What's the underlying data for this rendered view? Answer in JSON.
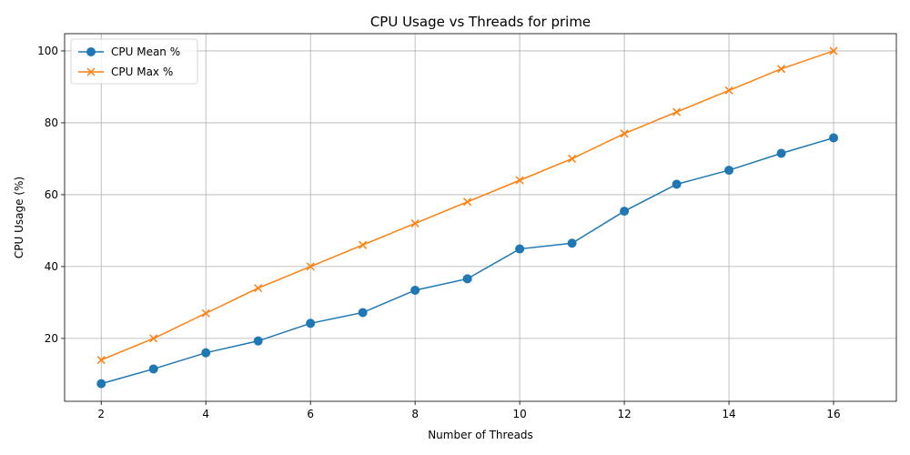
{
  "chart_data": {
    "type": "line",
    "title": "CPU Usage vs Threads for prime",
    "xlabel": "Number of Threads",
    "ylabel": "CPU Usage (%)",
    "x": [
      2,
      3,
      4,
      5,
      6,
      7,
      8,
      9,
      10,
      11,
      12,
      13,
      14,
      15,
      16
    ],
    "xlim": [
      1.3,
      17.2
    ],
    "ylim": [
      2.5,
      104.8
    ],
    "xticks": [
      2,
      4,
      6,
      8,
      10,
      12,
      14,
      16
    ],
    "yticks": [
      20,
      40,
      60,
      80,
      100
    ],
    "grid": true,
    "legend_position": "upper-left",
    "series": [
      {
        "name": "CPU Mean %",
        "marker": "circle",
        "color": "#1f77b4",
        "values": [
          7.4,
          11.5,
          16.0,
          19.3,
          24.2,
          27.2,
          33.4,
          36.6,
          44.9,
          46.5,
          55.4,
          62.9,
          66.8,
          71.5,
          75.8
        ]
      },
      {
        "name": "CPU Max %",
        "marker": "x",
        "color": "#ff7f0e",
        "values": [
          14,
          20,
          27,
          34,
          40,
          46,
          52,
          58,
          64,
          70,
          77,
          83,
          89,
          95,
          100
        ]
      }
    ]
  }
}
